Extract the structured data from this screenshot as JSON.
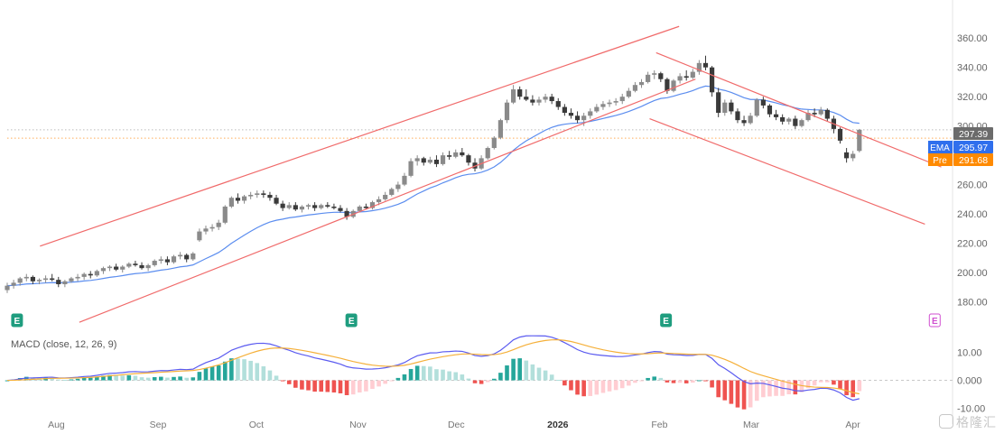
{
  "chart_data": {
    "type": "candlestick",
    "months": [
      {
        "label": "Aug",
        "day": 15
      },
      {
        "label": "Sep",
        "day": 46
      },
      {
        "label": "Oct",
        "day": 76
      },
      {
        "label": "Nov",
        "day": 107
      },
      {
        "label": "Dec",
        "day": 137
      },
      {
        "label": "2026",
        "day": 168
      },
      {
        "label": "Feb",
        "day": 199
      },
      {
        "label": "Mar",
        "day": 227
      },
      {
        "label": "Apr",
        "day": 258
      }
    ],
    "price_axis": {
      "ticks": [
        "360.00",
        "340.00",
        "320.00",
        "300.00",
        "280.00",
        "260.00",
        "240.00",
        "220.00",
        "200.00",
        "180.00"
      ],
      "range": [
        176,
        370
      ]
    },
    "price_labels": [
      {
        "tag": "",
        "value": "297.39",
        "color": "#6b6b6b"
      },
      {
        "tag": "EMA",
        "value": "295.97",
        "color": "#2f6fed"
      },
      {
        "tag": "Pre",
        "value": "291.68",
        "color": "#ff8a00"
      }
    ],
    "reference_lines": [
      297.4,
      291.7
    ],
    "earnings_marker": "E",
    "earnings_days": [
      3,
      105,
      201,
      283
    ],
    "candles": [
      {
        "o": 188,
        "h": 193,
        "l": 186,
        "c": 191
      },
      {
        "o": 191,
        "h": 195,
        "l": 189,
        "c": 193
      },
      {
        "o": 193,
        "h": 197,
        "l": 191,
        "c": 196
      },
      {
        "o": 196,
        "h": 199,
        "l": 194,
        "c": 197
      },
      {
        "o": 197,
        "h": 198,
        "l": 192,
        "c": 194
      },
      {
        "o": 194,
        "h": 196,
        "l": 192,
        "c": 195
      },
      {
        "o": 195,
        "h": 198,
        "l": 193,
        "c": 196
      },
      {
        "o": 196,
        "h": 199,
        "l": 194,
        "c": 195
      },
      {
        "o": 195,
        "h": 197,
        "l": 190,
        "c": 192
      },
      {
        "o": 192,
        "h": 195,
        "l": 190,
        "c": 194
      },
      {
        "o": 194,
        "h": 197,
        "l": 193,
        "c": 196
      },
      {
        "o": 196,
        "h": 199,
        "l": 194,
        "c": 197
      },
      {
        "o": 197,
        "h": 200,
        "l": 195,
        "c": 199
      },
      {
        "o": 199,
        "h": 201,
        "l": 196,
        "c": 198
      },
      {
        "o": 198,
        "h": 202,
        "l": 197,
        "c": 201
      },
      {
        "o": 201,
        "h": 204,
        "l": 199,
        "c": 203
      },
      {
        "o": 203,
        "h": 205,
        "l": 201,
        "c": 204
      },
      {
        "o": 204,
        "h": 206,
        "l": 201,
        "c": 202
      },
      {
        "o": 202,
        "h": 205,
        "l": 200,
        "c": 204
      },
      {
        "o": 204,
        "h": 207,
        "l": 203,
        "c": 206
      },
      {
        "o": 206,
        "h": 208,
        "l": 204,
        "c": 205
      },
      {
        "o": 205,
        "h": 207,
        "l": 202,
        "c": 203
      },
      {
        "o": 203,
        "h": 206,
        "l": 201,
        "c": 205
      },
      {
        "o": 205,
        "h": 209,
        "l": 204,
        "c": 208
      },
      {
        "o": 208,
        "h": 211,
        "l": 206,
        "c": 209
      },
      {
        "o": 209,
        "h": 211,
        "l": 205,
        "c": 207
      },
      {
        "o": 207,
        "h": 212,
        "l": 206,
        "c": 211
      },
      {
        "o": 211,
        "h": 214,
        "l": 209,
        "c": 212
      },
      {
        "o": 212,
        "h": 213,
        "l": 207,
        "c": 209
      },
      {
        "o": 209,
        "h": 214,
        "l": 208,
        "c": 213
      },
      {
        "o": 222,
        "h": 230,
        "l": 221,
        "c": 228
      },
      {
        "o": 228,
        "h": 232,
        "l": 226,
        "c": 230
      },
      {
        "o": 230,
        "h": 233,
        "l": 228,
        "c": 231
      },
      {
        "o": 231,
        "h": 236,
        "l": 229,
        "c": 234
      },
      {
        "o": 234,
        "h": 246,
        "l": 233,
        "c": 245
      },
      {
        "o": 245,
        "h": 252,
        "l": 244,
        "c": 251
      },
      {
        "o": 251,
        "h": 254,
        "l": 247,
        "c": 249
      },
      {
        "o": 249,
        "h": 253,
        "l": 247,
        "c": 252
      },
      {
        "o": 252,
        "h": 255,
        "l": 250,
        "c": 253
      },
      {
        "o": 253,
        "h": 256,
        "l": 251,
        "c": 254
      },
      {
        "o": 254,
        "h": 256,
        "l": 251,
        "c": 253
      },
      {
        "o": 253,
        "h": 255,
        "l": 249,
        "c": 251
      },
      {
        "o": 251,
        "h": 253,
        "l": 246,
        "c": 247
      },
      {
        "o": 247,
        "h": 249,
        "l": 242,
        "c": 244
      },
      {
        "o": 244,
        "h": 248,
        "l": 243,
        "c": 246
      },
      {
        "o": 246,
        "h": 248,
        "l": 242,
        "c": 243
      },
      {
        "o": 243,
        "h": 246,
        "l": 241,
        "c": 245
      },
      {
        "o": 245,
        "h": 247,
        "l": 243,
        "c": 246
      },
      {
        "o": 246,
        "h": 248,
        "l": 242,
        "c": 244
      },
      {
        "o": 244,
        "h": 247,
        "l": 243,
        "c": 246
      },
      {
        "o": 246,
        "h": 248,
        "l": 244,
        "c": 245
      },
      {
        "o": 245,
        "h": 247,
        "l": 243,
        "c": 244
      },
      {
        "o": 244,
        "h": 246,
        "l": 241,
        "c": 242
      },
      {
        "o": 242,
        "h": 244,
        "l": 236,
        "c": 238
      },
      {
        "o": 238,
        "h": 243,
        "l": 237,
        "c": 242
      },
      {
        "o": 242,
        "h": 246,
        "l": 241,
        "c": 245
      },
      {
        "o": 245,
        "h": 247,
        "l": 243,
        "c": 244
      },
      {
        "o": 244,
        "h": 249,
        "l": 243,
        "c": 248
      },
      {
        "o": 248,
        "h": 252,
        "l": 246,
        "c": 250
      },
      {
        "o": 250,
        "h": 255,
        "l": 249,
        "c": 253
      },
      {
        "o": 253,
        "h": 258,
        "l": 252,
        "c": 257
      },
      {
        "o": 257,
        "h": 262,
        "l": 255,
        "c": 260
      },
      {
        "o": 260,
        "h": 268,
        "l": 259,
        "c": 266
      },
      {
        "o": 266,
        "h": 278,
        "l": 265,
        "c": 276
      },
      {
        "o": 276,
        "h": 280,
        "l": 273,
        "c": 278
      },
      {
        "o": 278,
        "h": 279,
        "l": 273,
        "c": 275
      },
      {
        "o": 275,
        "h": 279,
        "l": 274,
        "c": 277
      },
      {
        "o": 277,
        "h": 280,
        "l": 272,
        "c": 274
      },
      {
        "o": 274,
        "h": 282,
        "l": 273,
        "c": 280
      },
      {
        "o": 280,
        "h": 283,
        "l": 277,
        "c": 279
      },
      {
        "o": 279,
        "h": 284,
        "l": 278,
        "c": 282
      },
      {
        "o": 282,
        "h": 285,
        "l": 279,
        "c": 280
      },
      {
        "o": 280,
        "h": 281,
        "l": 273,
        "c": 275
      },
      {
        "o": 275,
        "h": 278,
        "l": 269,
        "c": 271
      },
      {
        "o": 271,
        "h": 280,
        "l": 270,
        "c": 278
      },
      {
        "o": 278,
        "h": 286,
        "l": 277,
        "c": 285
      },
      {
        "o": 285,
        "h": 293,
        "l": 284,
        "c": 292
      },
      {
        "o": 292,
        "h": 305,
        "l": 291,
        "c": 304
      },
      {
        "o": 304,
        "h": 318,
        "l": 302,
        "c": 316
      },
      {
        "o": 316,
        "h": 328,
        "l": 315,
        "c": 325
      },
      {
        "o": 325,
        "h": 327,
        "l": 318,
        "c": 320
      },
      {
        "o": 320,
        "h": 325,
        "l": 317,
        "c": 318
      },
      {
        "o": 318,
        "h": 321,
        "l": 314,
        "c": 316
      },
      {
        "o": 316,
        "h": 320,
        "l": 314,
        "c": 318
      },
      {
        "o": 318,
        "h": 322,
        "l": 316,
        "c": 320
      },
      {
        "o": 320,
        "h": 322,
        "l": 315,
        "c": 317
      },
      {
        "o": 317,
        "h": 319,
        "l": 311,
        "c": 313
      },
      {
        "o": 313,
        "h": 315,
        "l": 307,
        "c": 309
      },
      {
        "o": 309,
        "h": 312,
        "l": 305,
        "c": 307
      },
      {
        "o": 307,
        "h": 310,
        "l": 302,
        "c": 304
      },
      {
        "o": 304,
        "h": 309,
        "l": 300,
        "c": 307
      },
      {
        "o": 307,
        "h": 312,
        "l": 305,
        "c": 310
      },
      {
        "o": 310,
        "h": 315,
        "l": 309,
        "c": 313
      },
      {
        "o": 313,
        "h": 317,
        "l": 311,
        "c": 315
      },
      {
        "o": 315,
        "h": 318,
        "l": 313,
        "c": 316
      },
      {
        "o": 316,
        "h": 319,
        "l": 314,
        "c": 317
      },
      {
        "o": 317,
        "h": 322,
        "l": 315,
        "c": 320
      },
      {
        "o": 320,
        "h": 326,
        "l": 319,
        "c": 324
      },
      {
        "o": 324,
        "h": 330,
        "l": 323,
        "c": 328
      },
      {
        "o": 328,
        "h": 332,
        "l": 326,
        "c": 330
      },
      {
        "o": 330,
        "h": 337,
        "l": 329,
        "c": 335
      },
      {
        "o": 335,
        "h": 338,
        "l": 332,
        "c": 336
      },
      {
        "o": 336,
        "h": 337,
        "l": 330,
        "c": 332
      },
      {
        "o": 332,
        "h": 333,
        "l": 322,
        "c": 324
      },
      {
        "o": 324,
        "h": 332,
        "l": 323,
        "c": 331
      },
      {
        "o": 331,
        "h": 336,
        "l": 329,
        "c": 334
      },
      {
        "o": 334,
        "h": 338,
        "l": 331,
        "c": 333
      },
      {
        "o": 333,
        "h": 339,
        "l": 332,
        "c": 337
      },
      {
        "o": 337,
        "h": 345,
        "l": 335,
        "c": 343
      },
      {
        "o": 343,
        "h": 348,
        "l": 338,
        "c": 340
      },
      {
        "o": 340,
        "h": 341,
        "l": 320,
        "c": 323
      },
      {
        "o": 323,
        "h": 326,
        "l": 306,
        "c": 309
      },
      {
        "o": 309,
        "h": 318,
        "l": 307,
        "c": 316
      },
      {
        "o": 316,
        "h": 318,
        "l": 308,
        "c": 310
      },
      {
        "o": 310,
        "h": 312,
        "l": 302,
        "c": 304
      },
      {
        "o": 304,
        "h": 307,
        "l": 300,
        "c": 302
      },
      {
        "o": 302,
        "h": 309,
        "l": 301,
        "c": 307
      },
      {
        "o": 307,
        "h": 319,
        "l": 306,
        "c": 318
      },
      {
        "o": 318,
        "h": 320,
        "l": 312,
        "c": 314
      },
      {
        "o": 314,
        "h": 315,
        "l": 306,
        "c": 308
      },
      {
        "o": 308,
        "h": 311,
        "l": 304,
        "c": 306
      },
      {
        "o": 306,
        "h": 308,
        "l": 301,
        "c": 303
      },
      {
        "o": 303,
        "h": 306,
        "l": 301,
        "c": 305
      },
      {
        "o": 305,
        "h": 307,
        "l": 298,
        "c": 300
      },
      {
        "o": 300,
        "h": 305,
        "l": 299,
        "c": 304
      },
      {
        "o": 304,
        "h": 311,
        "l": 303,
        "c": 309
      },
      {
        "o": 309,
        "h": 312,
        "l": 306,
        "c": 308
      },
      {
        "o": 308,
        "h": 313,
        "l": 307,
        "c": 311
      },
      {
        "o": 311,
        "h": 312,
        "l": 303,
        "c": 305
      },
      {
        "o": 305,
        "h": 307,
        "l": 295,
        "c": 298
      },
      {
        "o": 298,
        "h": 299,
        "l": 288,
        "c": 290
      },
      {
        "o": 282,
        "h": 285,
        "l": 275,
        "c": 278
      },
      {
        "o": 278,
        "h": 283,
        "l": 276,
        "c": 281
      },
      {
        "o": 283,
        "h": 298,
        "l": 282,
        "c": 297.4
      }
    ],
    "channels": [
      {
        "from": {
          "day": 10,
          "price": 218
        },
        "to": {
          "day": 205,
          "price": 368
        }
      },
      {
        "from": {
          "day": 22,
          "price": 166
        },
        "to": {
          "day": 210,
          "price": 332
        }
      },
      {
        "from": {
          "day": 198,
          "price": 350
        },
        "to": {
          "day": 285,
          "price": 272
        }
      },
      {
        "from": {
          "day": 196,
          "price": 305
        },
        "to": {
          "day": 280,
          "price": 233
        }
      }
    ],
    "macd": {
      "label": "MACD (close, 12, 26, 9)",
      "ticks": [
        "10.00",
        "0.000",
        "-10.00"
      ],
      "tick_values": [
        10,
        0,
        -10
      ],
      "range": [
        -13,
        14
      ],
      "macd_color": "#5b5bf0",
      "signal_color": "#f5b03a"
    }
  }
}
